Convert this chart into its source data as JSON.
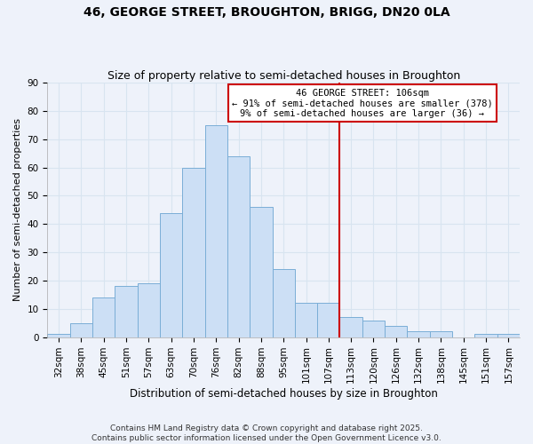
{
  "title": "46, GEORGE STREET, BROUGHTON, BRIGG, DN20 0LA",
  "subtitle": "Size of property relative to semi-detached houses in Broughton",
  "xlabel": "Distribution of semi-detached houses by size in Broughton",
  "ylabel": "Number of semi-detached properties",
  "bar_labels": [
    "32sqm",
    "38sqm",
    "45sqm",
    "51sqm",
    "57sqm",
    "63sqm",
    "70sqm",
    "76sqm",
    "82sqm",
    "88sqm",
    "95sqm",
    "101sqm",
    "107sqm",
    "113sqm",
    "120sqm",
    "126sqm",
    "132sqm",
    "138sqm",
    "145sqm",
    "151sqm",
    "157sqm"
  ],
  "bar_values": [
    1,
    5,
    14,
    18,
    19,
    44,
    60,
    75,
    64,
    46,
    24,
    12,
    12,
    7,
    6,
    4,
    2,
    2,
    0,
    1,
    1
  ],
  "bar_color": "#ccdff5",
  "bar_edge_color": "#7aaed6",
  "vline_x": 12.5,
  "vline_color": "#cc0000",
  "annotation_title": "46 GEORGE STREET: 106sqm",
  "annotation_line1": "← 91% of semi-detached houses are smaller (378)",
  "annotation_line2": "9% of semi-detached houses are larger (36) →",
  "annotation_box_color": "white",
  "annotation_box_edge": "#cc0000",
  "ylim": [
    0,
    90
  ],
  "yticks": [
    0,
    10,
    20,
    30,
    40,
    50,
    60,
    70,
    80,
    90
  ],
  "background_color": "#eef2fa",
  "grid_color": "#d8e4f0",
  "footer1": "Contains HM Land Registry data © Crown copyright and database right 2025.",
  "footer2": "Contains public sector information licensed under the Open Government Licence v3.0.",
  "title_fontsize": 10,
  "subtitle_fontsize": 9,
  "xlabel_fontsize": 8.5,
  "ylabel_fontsize": 8,
  "tick_fontsize": 7.5,
  "annotation_fontsize": 7.5,
  "footer_fontsize": 6.5
}
